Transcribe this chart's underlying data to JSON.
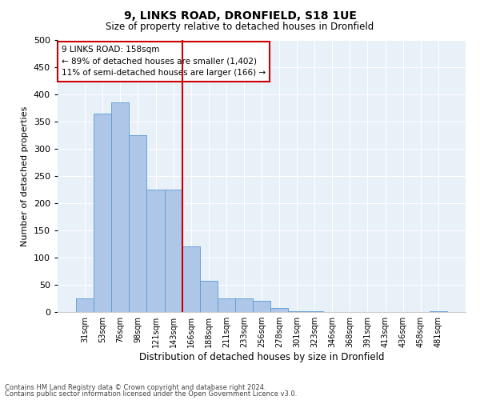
{
  "title1": "9, LINKS ROAD, DRONFIELD, S18 1UE",
  "title2": "Size of property relative to detached houses in Dronfield",
  "xlabel": "Distribution of detached houses by size in Dronfield",
  "ylabel": "Number of detached properties",
  "bar_labels": [
    "31sqm",
    "53sqm",
    "76sqm",
    "98sqm",
    "121sqm",
    "143sqm",
    "166sqm",
    "188sqm",
    "211sqm",
    "233sqm",
    "256sqm",
    "278sqm",
    "301sqm",
    "323sqm",
    "346sqm",
    "368sqm",
    "391sqm",
    "413sqm",
    "436sqm",
    "458sqm",
    "481sqm"
  ],
  "bar_values": [
    25,
    365,
    385,
    325,
    225,
    225,
    120,
    57,
    25,
    25,
    20,
    8,
    2,
    1,
    0,
    0,
    0,
    0,
    0,
    0,
    2
  ],
  "bar_color": "#aec6e8",
  "bar_edgecolor": "#5b9bd5",
  "vline_color": "#cc0000",
  "annotation_text": "9 LINKS ROAD: 158sqm\n← 89% of detached houses are smaller (1,402)\n11% of semi-detached houses are larger (166) →",
  "annotation_box_color": "#ffffff",
  "annotation_box_edgecolor": "#cc0000",
  "ylim": [
    0,
    500
  ],
  "yticks": [
    0,
    50,
    100,
    150,
    200,
    250,
    300,
    350,
    400,
    450,
    500
  ],
  "bg_color": "#e8f0f8",
  "footnote1": "Contains HM Land Registry data © Crown copyright and database right 2024.",
  "footnote2": "Contains public sector information licensed under the Open Government Licence v3.0."
}
